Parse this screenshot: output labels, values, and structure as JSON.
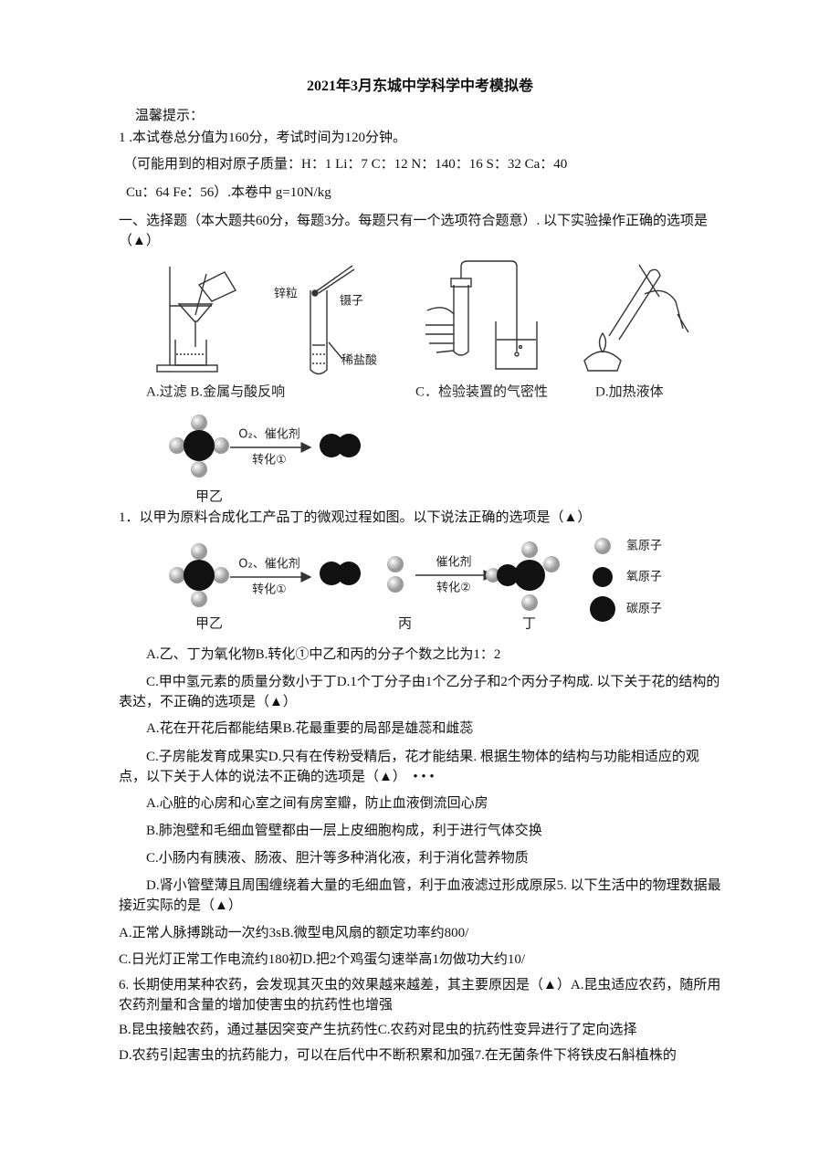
{
  "title": "2021年3月东城中学科学中考模拟卷",
  "notice": {
    "heading": "温馨提示：",
    "lines": [
      "1 .本试卷总分值为160分，考试时间为120分钟。",
      "（可能用到的相对原子质量：H：1 Li：7 C：12 N：140：16 S：32 Ca：40",
      "Cu：64 Fe：56）.本卷中 g=10N/kg"
    ]
  },
  "section_heading": "一、选择题（本大题共60分，每题3分。每题只有一个选项符合题意）. 以下实验操作正确的选项是（▲）",
  "figure1": {
    "labels": [
      "锌粒",
      "镊子",
      "稀盐酸"
    ],
    "captions": [
      "A.过滤 B.金属与酸反响",
      "C．检验装置的气密性",
      "D.加热液体"
    ]
  },
  "figure_molecule1": {
    "reagent": "O₂、催化剂",
    "step": "转化①",
    "caption": "甲乙"
  },
  "question1": "1．以甲为原料合成化工产品丁的微观过程如图。以下说法正确的选项是（▲）",
  "figure2": {
    "reagent1": "O₂、催化剂",
    "step1": "转化①",
    "reagent2": "催化剂",
    "step2": "转化②",
    "captions": [
      "甲乙",
      "丙",
      "丁"
    ],
    "legend": [
      "氢原子",
      "氧原子",
      "碳原子"
    ]
  },
  "paragraphs": [
    "A.乙、丁为氧化物B.转化①中乙和丙的分子个数之比为1：2",
    "C.甲中氢元素的质量分数小于丁D.1个丁分子由1个乙分子和2个丙分子构成. 以下关于花的结构的表达，不正确的选项是（▲）",
    "A.花在开花后都能结果B.花最重要的局部是雄蕊和雌蕊",
    "C.子房能发育成果实D.只有在传粉受精后，花才能结果. 根据生物体的结构与功能相适应的观点，以下关于人体的说法不正确的选项是（▲）　• • •",
    "A.心脏的心房和心室之间有房室瓣，防止血液倒流回心房",
    "B.肺泡壁和毛细血管壁都由一层上皮细胞构成，利于进行气体交换",
    "C.小肠内有胰液、肠液、胆汁等多种消化液，利于消化营养物质",
    "D.肾小管壁薄且周围缠绕着大量的毛细血管，利于血液滤过形成原尿5. 以下生活中的物理数据最接近实际的是（▲）",
    "A.正常人脉搏跳动一次约3sB.微型电风扇的额定功率约800/",
    "C.日光灯正常工作电流约180初D.把2个鸡蛋匀速举高1勿做功大约10/",
    "6. 长期使用某种农药，会发现其灭虫的效果越来越差，其主要原因是（▲）A.昆虫适应农药，随所用农药剂量和含量的增加使害虫的抗药性也增强",
    "B.昆虫接触农药，通过基因突变产生抗药性C.农药对昆虫的抗药性变异进行了定向选择",
    "D.农药引起害虫的抗药能力，可以在后代中不断积累和加强7.在无菌条件下将铁皮石斛植株的"
  ]
}
